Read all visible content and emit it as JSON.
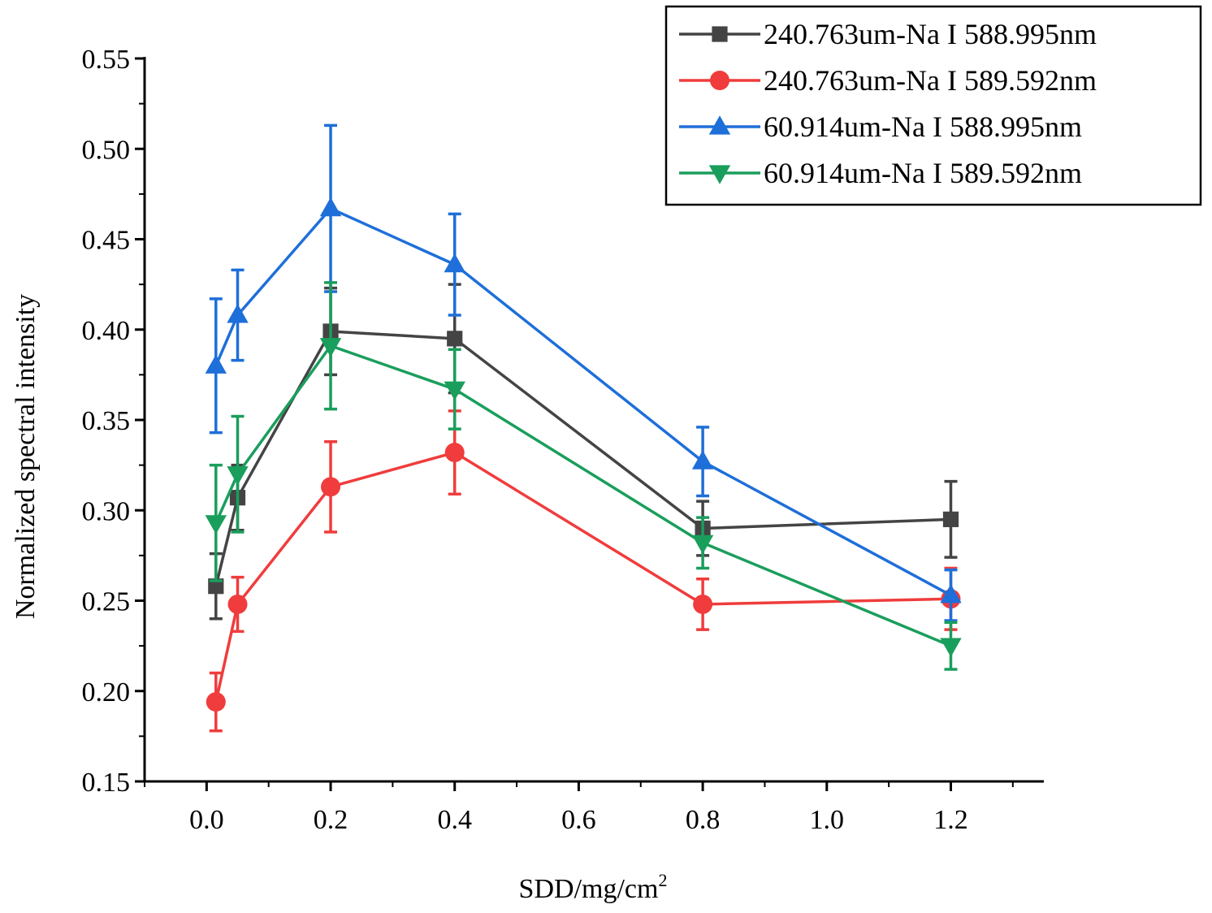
{
  "chart_data": {
    "type": "line",
    "title": "",
    "xlabel": "SDD/mg/cm",
    "xlabel_superscript": "2",
    "ylabel": "Normalized spectral intensity",
    "xlim": [
      -0.1,
      1.35
    ],
    "ylim": [
      0.15,
      0.55
    ],
    "x_ticks": [
      0.0,
      0.2,
      0.4,
      0.6,
      0.8,
      1.0,
      1.2
    ],
    "x_tick_labels": [
      "0.0",
      "0.2",
      "0.4",
      "0.6",
      "0.8",
      "1.0",
      "1.2"
    ],
    "y_ticks": [
      0.15,
      0.2,
      0.25,
      0.3,
      0.35,
      0.4,
      0.45,
      0.5,
      0.55
    ],
    "y_tick_labels": [
      "0.15",
      "0.20",
      "0.25",
      "0.30",
      "0.35",
      "0.40",
      "0.45",
      "0.50",
      "0.55"
    ],
    "grid": false,
    "legend_position": "top-right",
    "x": [
      0.015,
      0.05,
      0.2,
      0.4,
      0.8,
      1.2
    ],
    "series": [
      {
        "name": "240.763um-Na I 588.995nm",
        "color": "#444444",
        "marker": "square",
        "values": [
          0.258,
          0.307,
          0.399,
          0.395,
          0.29,
          0.295
        ],
        "errors": [
          0.018,
          0.018,
          0.024,
          0.03,
          0.015,
          0.021
        ]
      },
      {
        "name": "240.763um-Na I 589.592nm",
        "color": "#f03c3c",
        "marker": "circle",
        "values": [
          0.194,
          0.248,
          0.313,
          0.332,
          0.248,
          0.251
        ],
        "errors": [
          0.016,
          0.015,
          0.025,
          0.023,
          0.014,
          0.017
        ]
      },
      {
        "name": "60.914um-Na I 588.995nm",
        "color": "#1e6fd9",
        "marker": "triangle-up",
        "values": [
          0.38,
          0.408,
          0.467,
          0.436,
          0.327,
          0.253
        ],
        "errors": [
          0.037,
          0.025,
          0.046,
          0.028,
          0.019,
          0.014
        ]
      },
      {
        "name": "60.914um-Na I 589.592nm",
        "color": "#1a9e5c",
        "marker": "triangle-down",
        "values": [
          0.293,
          0.32,
          0.391,
          0.367,
          0.282,
          0.225
        ],
        "errors": [
          0.032,
          0.032,
          0.035,
          0.022,
          0.014,
          0.013
        ]
      }
    ]
  }
}
